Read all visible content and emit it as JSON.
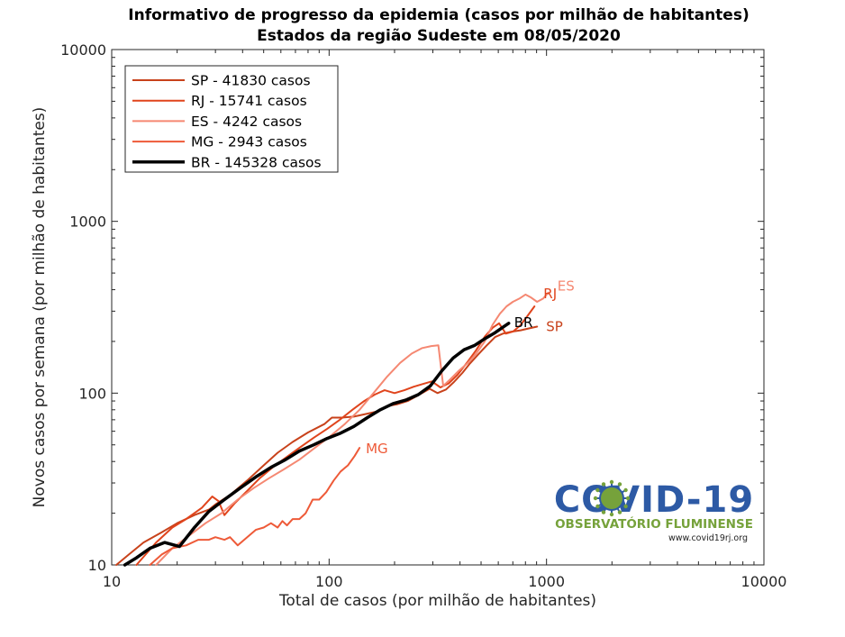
{
  "chart_data": {
    "type": "line",
    "title": "Informativo de progresso da epidemia (casos por milhão de habitantes)",
    "subtitle": "Estados da região Sudeste  em 08/05/2020",
    "xlabel": "Total de casos (por milhão de habitantes)",
    "ylabel": "Novos casos por semana (por milhão de habitantes)",
    "xscale": "log",
    "yscale": "log",
    "xlim": [
      10,
      10000
    ],
    "ylim": [
      10,
      10000
    ],
    "xticks": [
      {
        "value": 10,
        "label": "10"
      },
      {
        "value": 100,
        "label": "100"
      },
      {
        "value": 1000,
        "label": "1000"
      },
      {
        "value": 10000,
        "label": "10000"
      }
    ],
    "yticks": [
      {
        "value": 10,
        "label": "10"
      },
      {
        "value": 100,
        "label": "100"
      },
      {
        "value": 1000,
        "label": "1000"
      },
      {
        "value": 10000,
        "label": "10000"
      }
    ],
    "grid": false,
    "legend_position": "top-left",
    "series": [
      {
        "key": "SP",
        "legend": "SP - 41830 casos",
        "end_label": "SP",
        "color": "#c8421b",
        "width": 2,
        "x": [
          10.5,
          12,
          14,
          17,
          20,
          24,
          28,
          30,
          35,
          42,
          50,
          58,
          68,
          80,
          95,
          103,
          115,
          130,
          150,
          165,
          185,
          205,
          230,
          260,
          290,
          315,
          345,
          375,
          410,
          445,
          485,
          530,
          580,
          630,
          690,
          760,
          830,
          905
        ],
        "y": [
          10,
          11.5,
          13.5,
          15.5,
          17.5,
          19.5,
          21,
          22.5,
          25.5,
          31,
          38,
          45,
          52,
          59,
          66,
          72,
          72,
          73,
          76,
          78,
          84,
          86,
          90,
          98,
          106,
          100,
          105,
          116,
          131,
          149,
          168,
          189,
          212,
          222,
          228,
          232,
          238,
          244
        ]
      },
      {
        "key": "RJ",
        "legend": "RJ - 15741 casos",
        "end_label": "RJ",
        "color": "#e0441c",
        "width": 2,
        "x": [
          13,
          16,
          19,
          22,
          26,
          29,
          31,
          33,
          37,
          42,
          48,
          55,
          63,
          73,
          85,
          98,
          112,
          128,
          145,
          162,
          180,
          200,
          222,
          245,
          270,
          297,
          325,
          355,
          390,
          430,
          475,
          520,
          565,
          605,
          650,
          700,
          755,
          815,
          880
        ],
        "y": [
          10,
          13.5,
          16.5,
          18.5,
          21.5,
          25,
          23.5,
          19.5,
          23,
          27,
          32,
          37,
          42,
          48,
          55,
          62,
          70,
          80,
          90,
          98,
          104,
          100,
          104,
          109,
          113,
          117,
          108,
          114,
          128,
          150,
          178,
          213,
          240,
          255,
          222,
          228,
          247,
          280,
          320
        ]
      },
      {
        "key": "ES",
        "legend": "ES - 4242 casos",
        "end_label": "ES",
        "color": "#f58872",
        "width": 2,
        "x": [
          16,
          19,
          23,
          27,
          32,
          38,
          45,
          53,
          62,
          73,
          86,
          101,
          118,
          138,
          160,
          185,
          212,
          240,
          268,
          295,
          318,
          335,
          360,
          395,
          435,
          475,
          520,
          565,
          610,
          655,
          700,
          750,
          800,
          850,
          905,
          965,
          1020
        ],
        "y": [
          10,
          12.5,
          15,
          17.5,
          20,
          24,
          28,
          32,
          36,
          41,
          48,
          56,
          66,
          80,
          100,
          125,
          150,
          170,
          183,
          188,
          190,
          110,
          120,
          135,
          150,
          170,
          200,
          250,
          290,
          320,
          340,
          355,
          375,
          360,
          340,
          355,
          385
        ]
      },
      {
        "key": "MG",
        "legend": "MG - 2943 casos",
        "end_label": "MG",
        "color": "#ee5a38",
        "width": 2,
        "x": [
          15,
          17,
          19,
          22,
          25,
          28,
          30,
          33,
          35,
          38,
          42,
          46,
          50,
          54,
          58,
          61,
          64,
          68,
          73,
          78,
          84,
          90,
          97,
          105,
          113,
          122,
          131,
          138
        ],
        "y": [
          10,
          11.5,
          12.5,
          13,
          14,
          14,
          14.5,
          14,
          14.5,
          13,
          14.5,
          16,
          16.5,
          17.5,
          16.5,
          18,
          17,
          18.5,
          18.5,
          20,
          24,
          24,
          26.5,
          31,
          35,
          38,
          43,
          48
        ]
      },
      {
        "key": "BR",
        "legend": "BR - 145328 casos",
        "end_label": "BR",
        "color": "#000000",
        "width": 3.5,
        "x": [
          11.5,
          13,
          15,
          17.5,
          20.5,
          24,
          28,
          33,
          39,
          46,
          54,
          63,
          73,
          85,
          98,
          113,
          130,
          150,
          172,
          197,
          225,
          257,
          292,
          330,
          372,
          418,
          468,
          522,
          580,
          640,
          670
        ],
        "y": [
          10,
          11,
          12.5,
          13.5,
          12.8,
          16.5,
          20.5,
          24,
          28,
          32.5,
          37,
          41,
          46,
          50,
          54.5,
          58.5,
          64,
          72,
          80,
          87,
          91,
          98,
          110,
          135,
          160,
          179,
          190,
          208,
          225,
          245,
          255
        ]
      }
    ]
  },
  "logo": {
    "title": "COVID-19",
    "subtitle": "OBSERVATÓRIO FLUMINENSE",
    "url": "www.covid19rj.org",
    "blue": "#2d5aa5",
    "green": "#76a23b"
  }
}
